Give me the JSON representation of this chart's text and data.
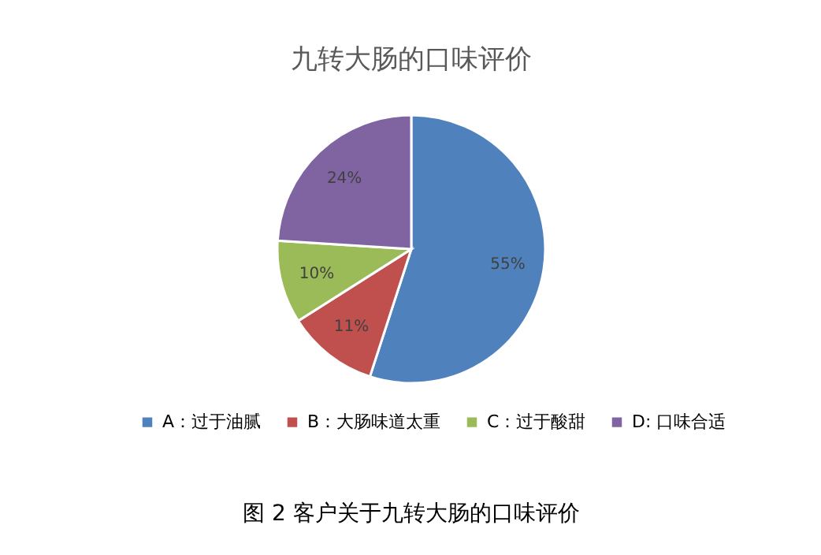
{
  "chart_data": {
    "type": "pie",
    "title": "九转大肠的口味评价",
    "categories": [
      "A：过于油腻",
      "B：大肠味道太重",
      "C：过于酸甜",
      "D: 口味合适"
    ],
    "values": [
      55,
      11,
      10,
      24
    ],
    "colors": [
      "#4f81bd",
      "#c0504d",
      "#9bbb59",
      "#8064a2"
    ],
    "value_labels": [
      "55%",
      "11%",
      "10%",
      "24%"
    ],
    "legend": "bottom",
    "annotations": [
      "图 2 客户关于九转大肠的口味评价"
    ]
  }
}
